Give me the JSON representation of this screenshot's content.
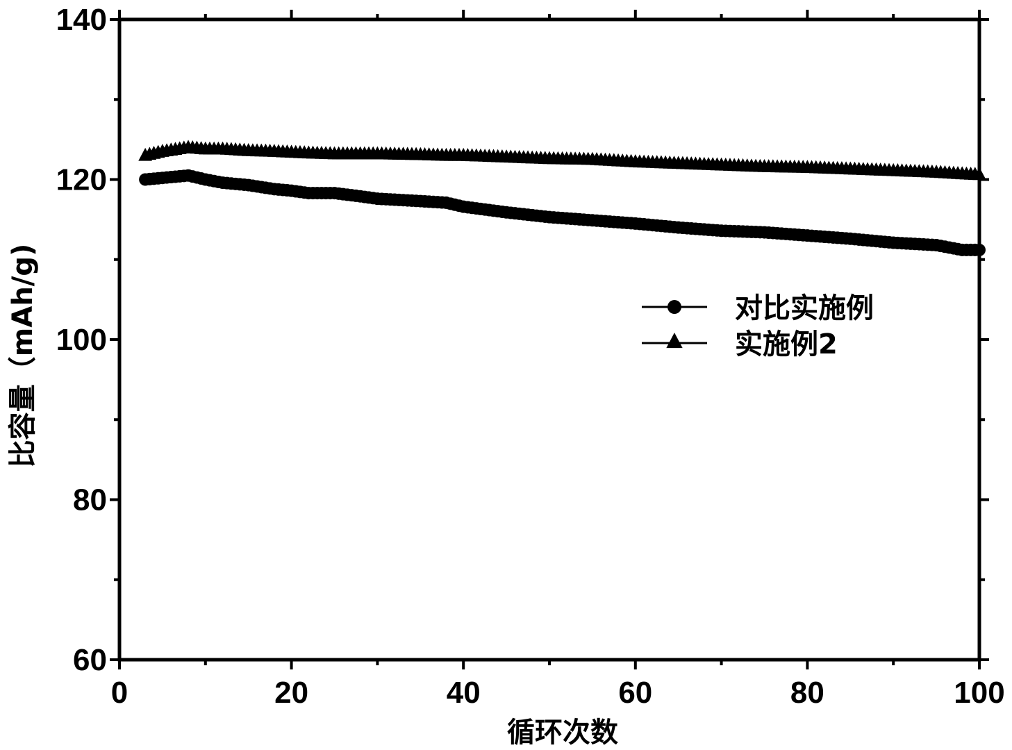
{
  "chart_data": {
    "type": "line",
    "title": "",
    "xlabel": "循环次数",
    "ylabel": "比容量（mAh/g)",
    "xlim": [
      0,
      100
    ],
    "ylim": [
      60,
      140
    ],
    "x_ticks": [
      0,
      20,
      40,
      60,
      80,
      100
    ],
    "x_tick_labels": [
      "0",
      "20",
      "40",
      "60",
      "80",
      "100"
    ],
    "y_ticks": [
      60,
      80,
      100,
      120,
      140
    ],
    "y_tick_labels": [
      "60",
      "80",
      "100",
      "120",
      "140"
    ],
    "grid": false,
    "legend_position": "center-right",
    "x": [
      3,
      5,
      8,
      10,
      12,
      15,
      18,
      20,
      22,
      25,
      28,
      30,
      35,
      38,
      40,
      45,
      50,
      55,
      60,
      65,
      70,
      75,
      80,
      85,
      90,
      95,
      98,
      100
    ],
    "series": [
      {
        "name": "对比实施例",
        "marker": "circle",
        "color": "#000000",
        "values": [
          120.0,
          120.2,
          120.5,
          120.0,
          119.6,
          119.3,
          118.8,
          118.6,
          118.3,
          118.3,
          117.9,
          117.6,
          117.3,
          117.1,
          116.6,
          115.9,
          115.3,
          114.9,
          114.5,
          114.0,
          113.6,
          113.4,
          113.0,
          112.6,
          112.1,
          111.8,
          111.2,
          111.2
        ]
      },
      {
        "name": "实施例2",
        "marker": "triangle",
        "color": "#000000",
        "values": [
          123.0,
          123.5,
          124.0,
          123.8,
          123.8,
          123.6,
          123.5,
          123.4,
          123.3,
          123.2,
          123.2,
          123.2,
          123.1,
          123.0,
          123.0,
          122.8,
          122.6,
          122.5,
          122.2,
          122.0,
          121.8,
          121.6,
          121.5,
          121.3,
          121.1,
          120.9,
          120.7,
          120.6
        ]
      }
    ]
  }
}
